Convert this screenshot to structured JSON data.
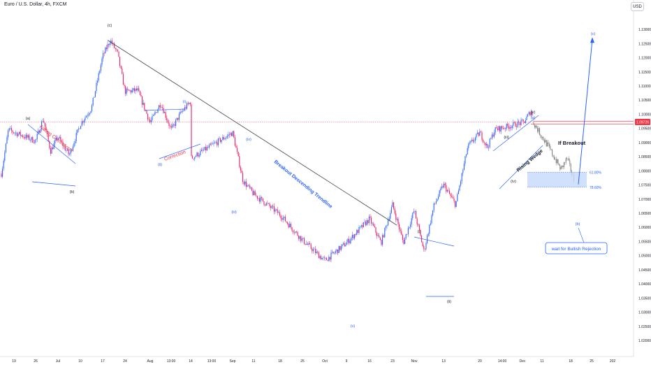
{
  "header": {
    "symbol_title": "Euro / U.S. Dollar, 4h, FXCM",
    "currency": "USD"
  },
  "colors": {
    "up_candle": "#2962ff",
    "down_candle": "#e91e63",
    "projection": "#7a7a7a",
    "trendline": "#434651",
    "blue_annot": "#2962ff",
    "red_annot": "#f23645",
    "zone_fill": "#c9dcfb",
    "price_tag": "#f23645"
  },
  "chart_data": {
    "type": "candlestick",
    "x_tick_labels": [
      "19",
      "26",
      "Jul",
      "10",
      "17",
      "24",
      "Aug",
      "13:00",
      "14",
      "13:00",
      "Sep",
      "11",
      "18",
      "25",
      "Oct",
      "9",
      "16",
      "23",
      "Nov",
      "13",
      "20",
      "14:00",
      "Dec",
      "11",
      "18",
      "25",
      "202"
    ],
    "y_tick_labels": [
      "1.13000",
      "1.12500",
      "1.12000",
      "1.11500",
      "1.11000",
      "1.10500",
      "1.10000",
      "1.09500",
      "1.09000",
      "1.08500",
      "1.08000",
      "1.07500",
      "1.07000",
      "1.06500",
      "1.06000",
      "1.05500",
      "1.05000",
      "1.04500",
      "1.04000",
      "1.03500",
      "1.03000",
      "1.02500",
      "1.02000"
    ],
    "y_range": [
      1.02,
      1.1325
    ],
    "current_price_label": "1.09726",
    "current_price": 1.09726,
    "price_path_anchors": [
      {
        "x_label": "19",
        "price": 1.079
      },
      {
        "x_label": "19",
        "price": 1.0945
      },
      {
        "x_label": "26",
        "price": 1.0905
      },
      {
        "x_label": "26",
        "price": 1.0985
      },
      {
        "x_label": "26",
        "price": 1.087
      },
      {
        "x_label": "Jul",
        "price": 1.092
      },
      {
        "x_label": "Jul",
        "price": 1.0855
      },
      {
        "x_label": "10",
        "price": 1.0965
      },
      {
        "x_label": "10",
        "price": 1.1022
      },
      {
        "x_label": "17",
        "price": 1.1205
      },
      {
        "x_label": "17",
        "price": 1.1262
      },
      {
        "x_label": "17",
        "price": 1.1215
      },
      {
        "x_label": "24",
        "price": 1.108
      },
      {
        "x_label": "24",
        "price": 1.1085
      },
      {
        "x_label": "Aug",
        "price": 1.097
      },
      {
        "x_label": "Aug",
        "price": 1.104
      },
      {
        "x_label": "13:00",
        "price": 1.0945
      },
      {
        "x_label": "13:00",
        "price": 1.1005
      },
      {
        "x_label": "14",
        "price": 1.1045
      },
      {
        "x_label": "14",
        "price": 1.0905
      },
      {
        "x_label": "13:00",
        "price": 1.08
      },
      {
        "x_label": "Sep",
        "price": 1.0935
      },
      {
        "x_label": "Sep",
        "price": 1.0765
      },
      {
        "x_label": "11",
        "price": 1.0718
      },
      {
        "x_label": "18",
        "price": 1.0645
      },
      {
        "x_label": "25",
        "price": 1.0555
      },
      {
        "x_label": "Oct",
        "price": 1.0482
      },
      {
        "x_label": "9",
        "price": 1.0545
      },
      {
        "x_label": "16",
        "price": 1.063
      },
      {
        "x_label": "16",
        "price": 1.0545
      },
      {
        "x_label": "23",
        "price": 1.068
      },
      {
        "x_label": "23",
        "price": 1.0545
      },
      {
        "x_label": "Nov",
        "price": 1.066
      },
      {
        "x_label": "Nov",
        "price": 1.0515
      },
      {
        "x_label": "Nov",
        "price": 1.0675
      },
      {
        "x_label": "13",
        "price": 1.0752
      },
      {
        "x_label": "13",
        "price": 1.068
      },
      {
        "x_label": "13",
        "price": 1.0885
      },
      {
        "x_label": "20",
        "price": 1.0935
      },
      {
        "x_label": "20",
        "price": 1.0882
      },
      {
        "x_label": "20",
        "price": 1.0945
      },
      {
        "x_label": "14:00",
        "price": 1.0972
      },
      {
        "x_label": "14:00",
        "price": 1.1015
      },
      {
        "x_label": "14:00",
        "price": 1.0973
      }
    ],
    "projection_path": [
      {
        "x_label": "14:00",
        "price": 1.0973
      },
      {
        "x_label": "Dec",
        "price": 1.0885
      },
      {
        "x_label": "Dec",
        "price": 1.0805
      },
      {
        "x_label": "11",
        "price": 1.0845
      },
      {
        "x_label": "11",
        "price": 1.0762
      }
    ],
    "projected_wave_c": {
      "from_price": 1.0762,
      "to_price": 1.1265
    },
    "fib_zone": {
      "levels": [
        "61.80%",
        "78.60%"
      ],
      "top": 1.0795,
      "bottom": 1.0742
    },
    "breakout_level": 1.0965,
    "trendlines": [
      {
        "name": "Breakout Descending Trendline",
        "from_price": 1.1262,
        "to_price": 1.0608
      }
    ],
    "wave_labels": [
      "(a)",
      "(b)",
      "(c)",
      "(ii)",
      "(i)",
      "(iv)",
      "(iii)",
      "(v)",
      "(i)",
      "(ii)",
      "(iii)",
      "(iv)",
      "(v)",
      "(a)",
      "(b)",
      "(c)"
    ],
    "annotations": [
      "Falling Correction",
      "Correction",
      "Breakout Descending Trendline",
      "Rising Wedge",
      "If Breakout",
      "wait for Bullish Rejection"
    ]
  }
}
